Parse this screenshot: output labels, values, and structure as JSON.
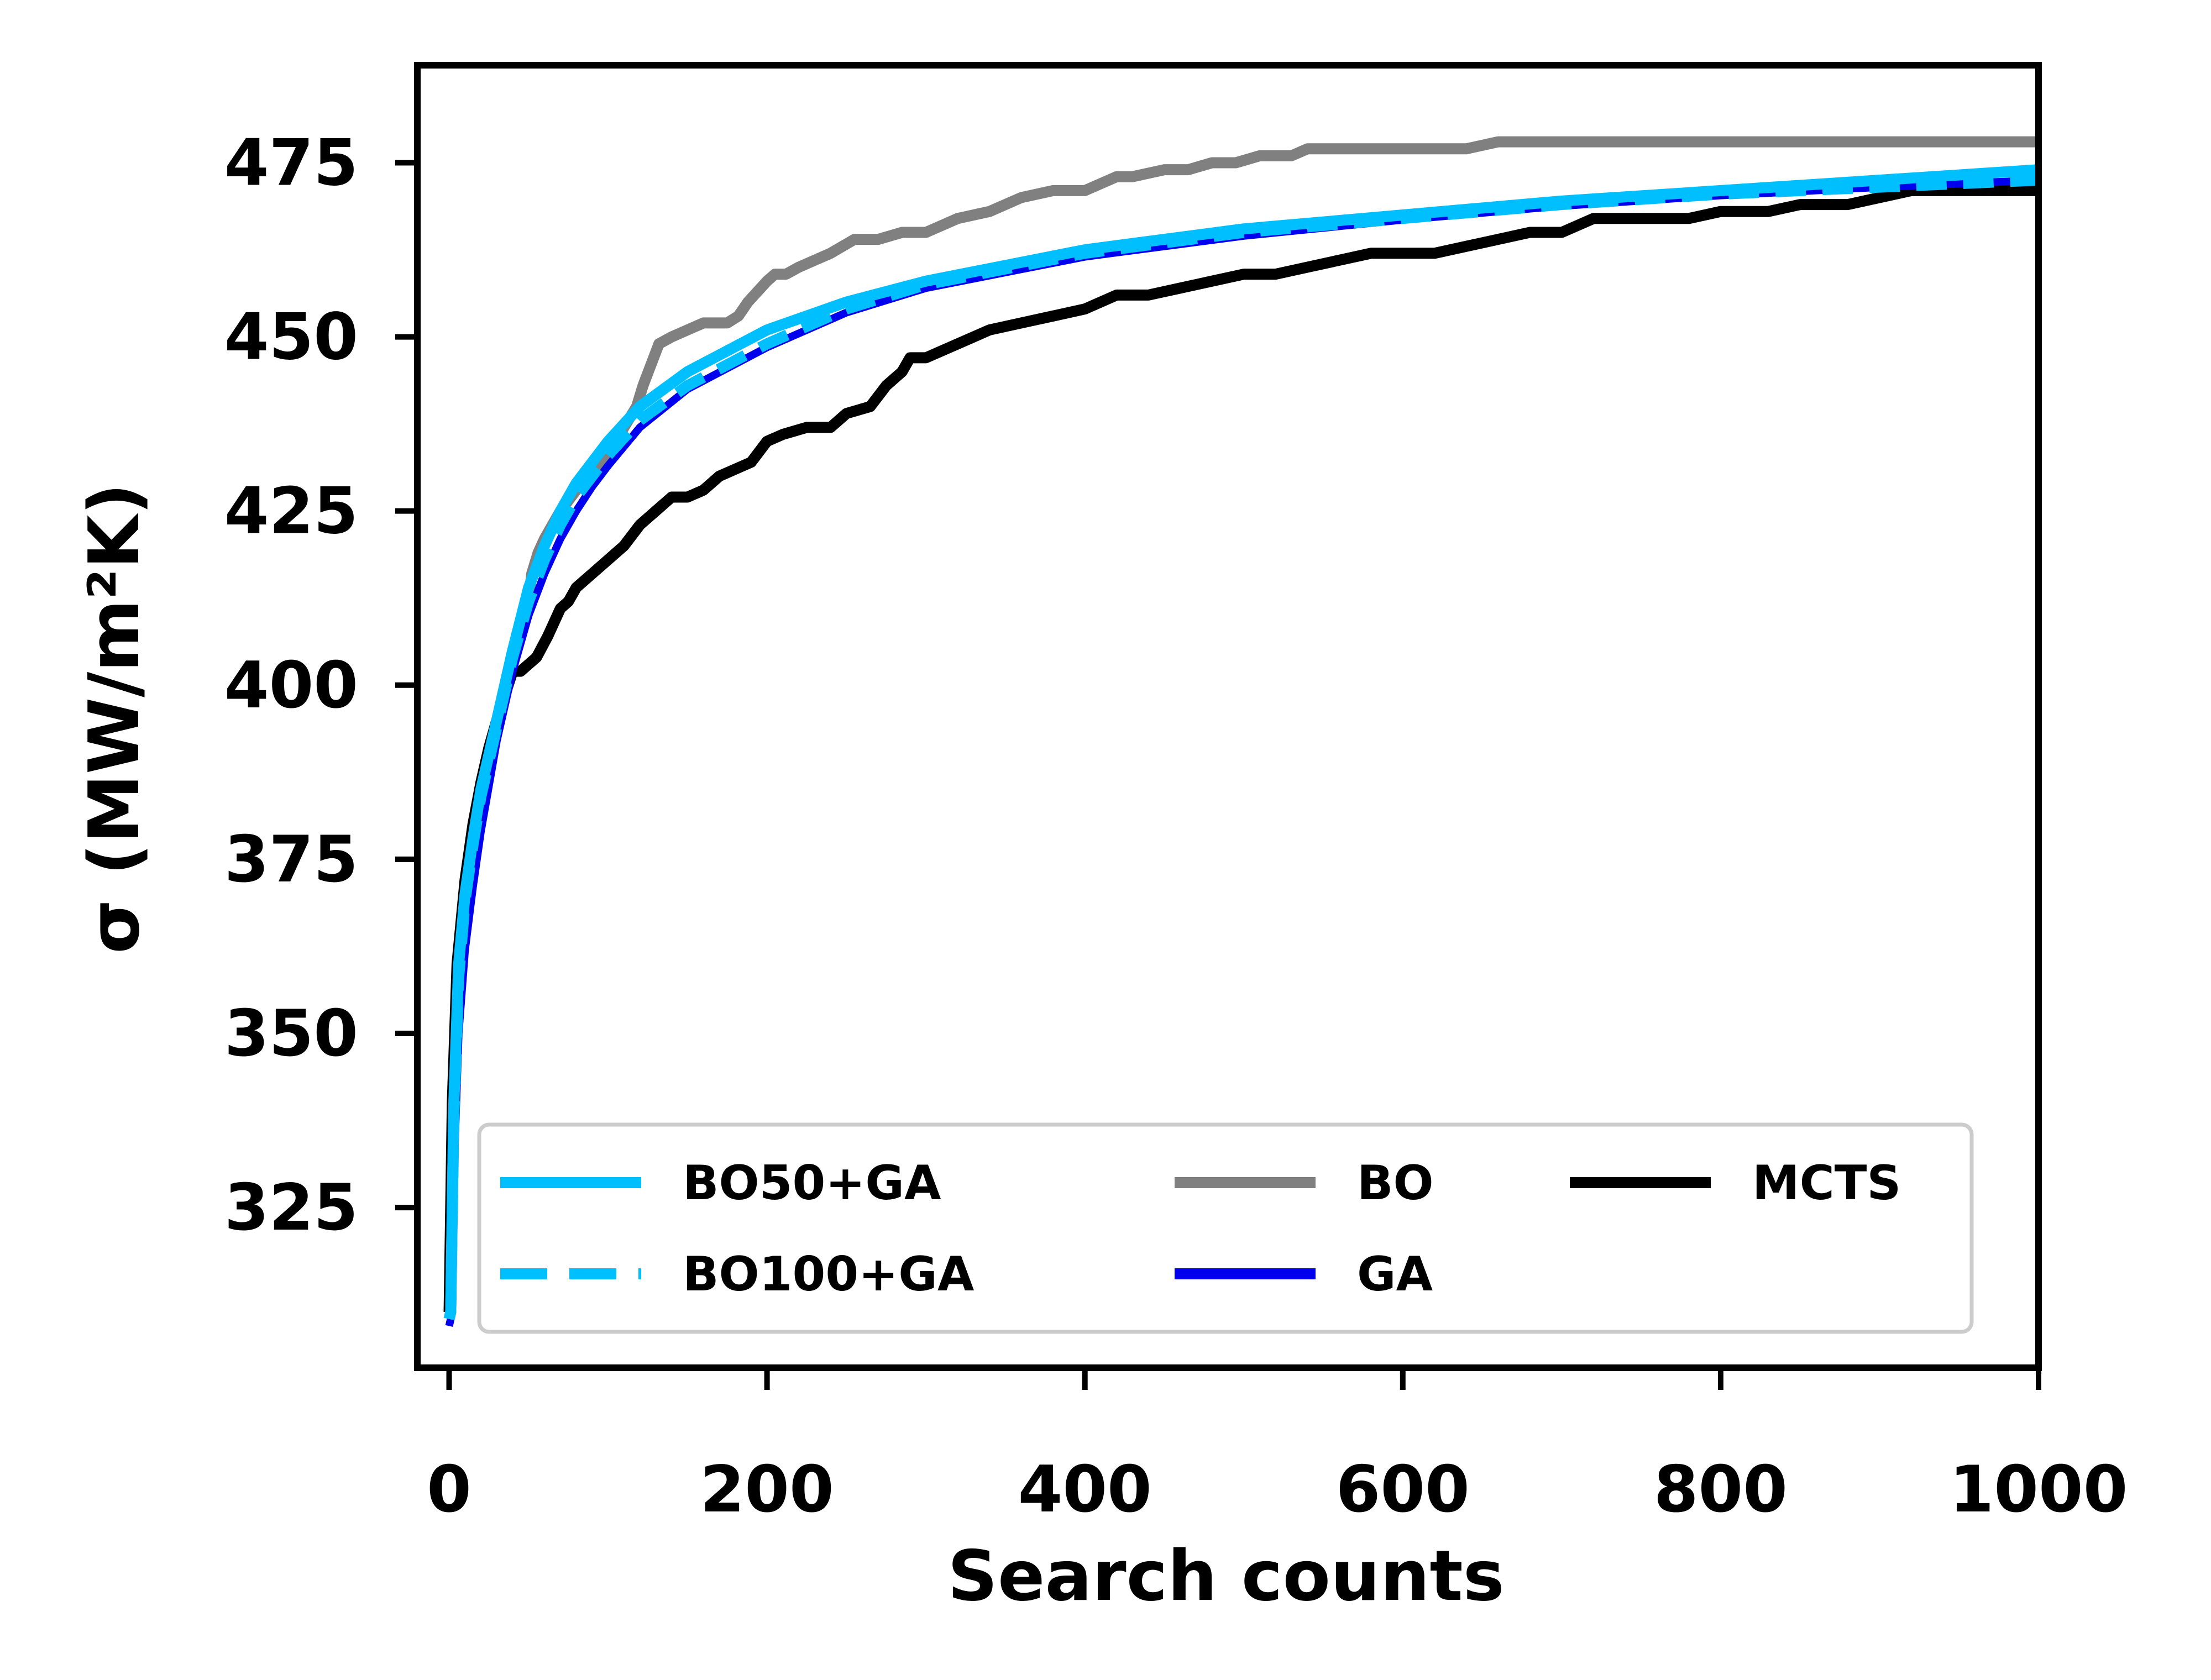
{
  "chart_data": {
    "type": "line",
    "title": "",
    "xlabel": "Search counts",
    "ylabel": "σ (MW/m²K)",
    "xlim": [
      -20,
      1000
    ],
    "ylim": [
      302,
      489
    ],
    "x_ticks": [
      0,
      200,
      400,
      600,
      800,
      1000
    ],
    "x_tick_labels": [
      "0",
      "200",
      "400",
      "600",
      "800",
      "1000"
    ],
    "y_ticks": [
      325,
      350,
      375,
      400,
      425,
      450,
      475
    ],
    "y_tick_labels": [
      "325",
      "350",
      "375",
      "400",
      "425",
      "450",
      "475"
    ],
    "grid": false,
    "legend_position": "lower-right",
    "legend_columns": 3,
    "series": [
      {
        "name": "BO50+GA",
        "color": "#00bfff",
        "style": "solid",
        "x": [
          0,
          1,
          3,
          6,
          10,
          15,
          20,
          30,
          40,
          50,
          60,
          70,
          80,
          90,
          100,
          120,
          150,
          200,
          250,
          300,
          400,
          500,
          600,
          700,
          800,
          900,
          1000
        ],
        "y": [
          309,
          310,
          340,
          360,
          370,
          378,
          385,
          395,
          405,
          414,
          420,
          425,
          429,
          432,
          435,
          440,
          445,
          451,
          455,
          458,
          462.5,
          465.5,
          467.5,
          469.5,
          471,
          472.5,
          474
        ]
      },
      {
        "name": "BO100+GA",
        "color": "#00bfff",
        "style": "dashed",
        "x": [
          0,
          1,
          3,
          6,
          10,
          15,
          20,
          30,
          40,
          50,
          60,
          70,
          80,
          90,
          100,
          120,
          150,
          200,
          250,
          300,
          400,
          500,
          600,
          700,
          800,
          900,
          1000
        ],
        "y": [
          309,
          310,
          338,
          358,
          369,
          377,
          384,
          394,
          404,
          412,
          418,
          423,
          427,
          430,
          433,
          438,
          443,
          449,
          454,
          457.5,
          462,
          465,
          467,
          469,
          470.5,
          471.5,
          472.5
        ]
      },
      {
        "name": "BO",
        "color": "#808080",
        "style": "solid",
        "x": [
          0,
          1,
          3,
          6,
          10,
          15,
          20,
          30,
          40,
          50,
          52,
          56,
          60,
          70,
          80,
          90,
          100,
          110,
          118,
          122,
          127,
          132,
          140,
          150,
          160,
          175,
          182,
          188,
          200,
          205,
          212,
          220,
          230,
          240,
          255,
          270,
          285,
          300,
          320,
          340,
          360,
          380,
          400,
          420,
          430,
          450,
          465,
          480,
          495,
          510,
          520,
          530,
          540,
          560,
          580,
          600,
          620,
          640,
          660,
          680,
          700,
          750,
          800,
          900,
          1000
        ],
        "y": [
          309,
          310,
          340,
          358,
          368,
          377,
          384,
          395,
          405,
          412,
          416,
          419,
          421,
          425,
          428,
          431,
          433,
          437,
          440,
          443,
          446,
          449,
          450,
          451,
          452,
          452,
          453,
          455,
          458,
          459,
          459,
          460,
          461,
          462,
          464,
          464,
          465,
          465,
          467,
          468,
          470,
          471,
          471,
          473,
          473,
          474,
          474,
          475,
          475,
          476,
          476,
          476,
          477,
          477,
          477,
          477,
          477,
          477,
          478,
          478,
          478,
          478,
          478,
          478,
          478
        ]
      },
      {
        "name": "GA",
        "color": "#0000ee",
        "style": "solid",
        "x": [
          0,
          1,
          3,
          6,
          10,
          15,
          20,
          30,
          40,
          50,
          60,
          70,
          80,
          90,
          100,
          120,
          150,
          200,
          250,
          300,
          400,
          500,
          600,
          700,
          800,
          900,
          1000
        ],
        "y": [
          308,
          309,
          330,
          350,
          362,
          371,
          379,
          392,
          402,
          410,
          416,
          421,
          425,
          428.5,
          431.5,
          437,
          442.5,
          448.5,
          453.5,
          457,
          461.5,
          464.5,
          466.8,
          468.8,
          470.3,
          471.5,
          472.5
        ]
      },
      {
        "name": "MCTS",
        "color": "#000000",
        "style": "solid",
        "x": [
          0,
          2,
          5,
          10,
          15,
          20,
          25,
          30,
          40,
          45,
          55,
          62,
          70,
          75,
          80,
          90,
          100,
          110,
          120,
          130,
          140,
          150,
          160,
          170,
          180,
          190,
          200,
          210,
          225,
          240,
          250,
          265,
          275,
          285,
          290,
          300,
          320,
          340,
          360,
          380,
          400,
          420,
          440,
          460,
          480,
          500,
          520,
          540,
          560,
          580,
          600,
          620,
          640,
          660,
          680,
          700,
          720,
          750,
          780,
          800,
          830,
          850,
          880,
          900,
          920,
          950,
          1000
        ],
        "y": [
          310,
          340,
          360,
          372,
          380,
          386,
          391,
          395,
          402,
          402,
          404,
          407,
          411,
          412,
          414,
          416,
          418,
          420,
          423,
          425,
          427,
          427,
          428,
          430,
          431,
          432,
          435,
          436,
          437,
          437,
          439,
          440,
          443,
          445,
          447,
          447,
          449,
          451,
          452,
          453,
          454,
          456,
          456,
          457,
          458,
          459,
          459,
          460,
          461,
          462,
          462,
          462,
          463,
          464,
          465,
          465,
          467,
          467,
          467,
          468,
          468,
          469,
          469,
          470,
          471,
          471,
          471
        ]
      }
    ]
  }
}
